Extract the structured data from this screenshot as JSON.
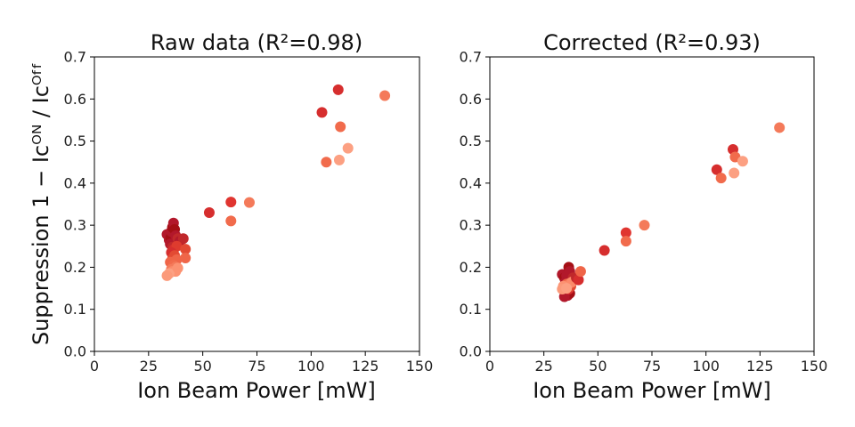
{
  "chart_data": [
    {
      "type": "scatter",
      "title": "Raw data (R²=0.98)",
      "xlabel": "Ion Beam Power [mW]",
      "ylabel": "Suppression 1 − Icᴼᴺ / Icᴼᶠᶠ",
      "xlim": [
        0,
        150
      ],
      "ylim": [
        0.0,
        0.7
      ],
      "xticks": [
        "0",
        "25",
        "50",
        "75",
        "100",
        "125",
        "150"
      ],
      "yticks": [
        "0.0",
        "0.1",
        "0.2",
        "0.3",
        "0.4",
        "0.5",
        "0.6",
        "0.7"
      ],
      "grid": false,
      "points": [
        {
          "x": 33.5,
          "y": 0.278,
          "color": "#b2182b"
        },
        {
          "x": 34.5,
          "y": 0.265,
          "color": "#b2182b"
        },
        {
          "x": 35.2,
          "y": 0.27,
          "color": "#a50f15"
        },
        {
          "x": 35.5,
          "y": 0.285,
          "color": "#b2182b"
        },
        {
          "x": 36.0,
          "y": 0.295,
          "color": "#a50f15"
        },
        {
          "x": 36.5,
          "y": 0.305,
          "color": "#b2182b"
        },
        {
          "x": 37.0,
          "y": 0.29,
          "color": "#a50f15"
        },
        {
          "x": 35.0,
          "y": 0.255,
          "color": "#b2182b"
        },
        {
          "x": 36.0,
          "y": 0.248,
          "color": "#c0282b"
        },
        {
          "x": 37.5,
          "y": 0.275,
          "color": "#b2182b"
        },
        {
          "x": 38.5,
          "y": 0.268,
          "color": "#c0282b"
        },
        {
          "x": 39.5,
          "y": 0.262,
          "color": "#b2182b"
        },
        {
          "x": 41.0,
          "y": 0.268,
          "color": "#c0282b"
        },
        {
          "x": 36.5,
          "y": 0.242,
          "color": "#d62e2e"
        },
        {
          "x": 38.0,
          "y": 0.25,
          "color": "#de3b2e"
        },
        {
          "x": 35.5,
          "y": 0.235,
          "color": "#d62e2e"
        },
        {
          "x": 37.0,
          "y": 0.228,
          "color": "#e34a33"
        },
        {
          "x": 36.0,
          "y": 0.22,
          "color": "#e34a33"
        },
        {
          "x": 38.0,
          "y": 0.218,
          "color": "#ef6548"
        },
        {
          "x": 35.0,
          "y": 0.212,
          "color": "#ef6548"
        },
        {
          "x": 36.5,
          "y": 0.205,
          "color": "#f16b4c"
        },
        {
          "x": 37.5,
          "y": 0.2,
          "color": "#f47a5a"
        },
        {
          "x": 35.5,
          "y": 0.195,
          "color": "#f47a5a"
        },
        {
          "x": 36.0,
          "y": 0.19,
          "color": "#fb8a6a"
        },
        {
          "x": 37.5,
          "y": 0.19,
          "color": "#fc9272"
        },
        {
          "x": 34.5,
          "y": 0.185,
          "color": "#fca082"
        },
        {
          "x": 33.5,
          "y": 0.18,
          "color": "#fb9a7a"
        },
        {
          "x": 38.5,
          "y": 0.198,
          "color": "#fc9272"
        },
        {
          "x": 42.0,
          "y": 0.243,
          "color": "#e34a33"
        },
        {
          "x": 42.0,
          "y": 0.222,
          "color": "#ef6548"
        },
        {
          "x": 53.0,
          "y": 0.33,
          "color": "#d62e2e"
        },
        {
          "x": 63.0,
          "y": 0.355,
          "color": "#e03530"
        },
        {
          "x": 63.0,
          "y": 0.31,
          "color": "#f16b4c"
        },
        {
          "x": 71.5,
          "y": 0.354,
          "color": "#f47a5a"
        },
        {
          "x": 105.0,
          "y": 0.568,
          "color": "#d62e2e"
        },
        {
          "x": 112.5,
          "y": 0.622,
          "color": "#d62e2e"
        },
        {
          "x": 113.5,
          "y": 0.534,
          "color": "#f16b4c"
        },
        {
          "x": 107.0,
          "y": 0.45,
          "color": "#f16b4c"
        },
        {
          "x": 113.0,
          "y": 0.455,
          "color": "#fca082"
        },
        {
          "x": 117.0,
          "y": 0.483,
          "color": "#fca082"
        },
        {
          "x": 134.0,
          "y": 0.608,
          "color": "#f47a5a"
        }
      ]
    },
    {
      "type": "scatter",
      "title": "Corrected (R²=0.93)",
      "xlabel": "Ion Beam Power [mW]",
      "ylabel": "",
      "xlim": [
        0,
        150
      ],
      "ylim": [
        0.0,
        0.7
      ],
      "xticks": [
        "0",
        "25",
        "50",
        "75",
        "100",
        "125",
        "150"
      ],
      "yticks": [
        "0.0",
        "0.1",
        "0.2",
        "0.3",
        "0.4",
        "0.5",
        "0.6",
        "0.7"
      ],
      "grid": false,
      "points": [
        {
          "x": 33.5,
          "y": 0.183,
          "color": "#b2182b"
        },
        {
          "x": 34.5,
          "y": 0.175,
          "color": "#a50f15"
        },
        {
          "x": 35.5,
          "y": 0.18,
          "color": "#b2182b"
        },
        {
          "x": 36.5,
          "y": 0.2,
          "color": "#a50f15"
        },
        {
          "x": 37.0,
          "y": 0.19,
          "color": "#b2182b"
        },
        {
          "x": 35.0,
          "y": 0.165,
          "color": "#b2182b"
        },
        {
          "x": 36.0,
          "y": 0.158,
          "color": "#a50f15"
        },
        {
          "x": 37.5,
          "y": 0.168,
          "color": "#b2182b"
        },
        {
          "x": 38.5,
          "y": 0.175,
          "color": "#c0282b"
        },
        {
          "x": 34.0,
          "y": 0.15,
          "color": "#b2182b"
        },
        {
          "x": 35.0,
          "y": 0.14,
          "color": "#a50f15"
        },
        {
          "x": 36.0,
          "y": 0.133,
          "color": "#b2182b"
        },
        {
          "x": 37.0,
          "y": 0.138,
          "color": "#a50f15"
        },
        {
          "x": 34.5,
          "y": 0.13,
          "color": "#b2182b"
        },
        {
          "x": 36.5,
          "y": 0.148,
          "color": "#d62e2e"
        },
        {
          "x": 37.5,
          "y": 0.155,
          "color": "#e34a33"
        },
        {
          "x": 35.5,
          "y": 0.16,
          "color": "#ef6548"
        },
        {
          "x": 37.0,
          "y": 0.162,
          "color": "#f47a5a"
        },
        {
          "x": 38.0,
          "y": 0.165,
          "color": "#fb8a6a"
        },
        {
          "x": 34.0,
          "y": 0.155,
          "color": "#fc9272"
        },
        {
          "x": 33.5,
          "y": 0.148,
          "color": "#fb9a7a"
        },
        {
          "x": 35.5,
          "y": 0.15,
          "color": "#fca082"
        },
        {
          "x": 40.0,
          "y": 0.175,
          "color": "#c0282b"
        },
        {
          "x": 41.0,
          "y": 0.17,
          "color": "#d62e2e"
        },
        {
          "x": 42.0,
          "y": 0.19,
          "color": "#ef6548"
        },
        {
          "x": 53.0,
          "y": 0.24,
          "color": "#d62e2e"
        },
        {
          "x": 63.0,
          "y": 0.282,
          "color": "#e03530"
        },
        {
          "x": 63.0,
          "y": 0.262,
          "color": "#f16b4c"
        },
        {
          "x": 71.5,
          "y": 0.3,
          "color": "#f47a5a"
        },
        {
          "x": 105.0,
          "y": 0.432,
          "color": "#d62e2e"
        },
        {
          "x": 112.5,
          "y": 0.48,
          "color": "#d62e2e"
        },
        {
          "x": 113.5,
          "y": 0.462,
          "color": "#f16b4c"
        },
        {
          "x": 107.0,
          "y": 0.412,
          "color": "#f16b4c"
        },
        {
          "x": 113.0,
          "y": 0.424,
          "color": "#fca082"
        },
        {
          "x": 117.0,
          "y": 0.452,
          "color": "#fca082"
        },
        {
          "x": 134.0,
          "y": 0.532,
          "color": "#f47a5a"
        }
      ]
    }
  ]
}
